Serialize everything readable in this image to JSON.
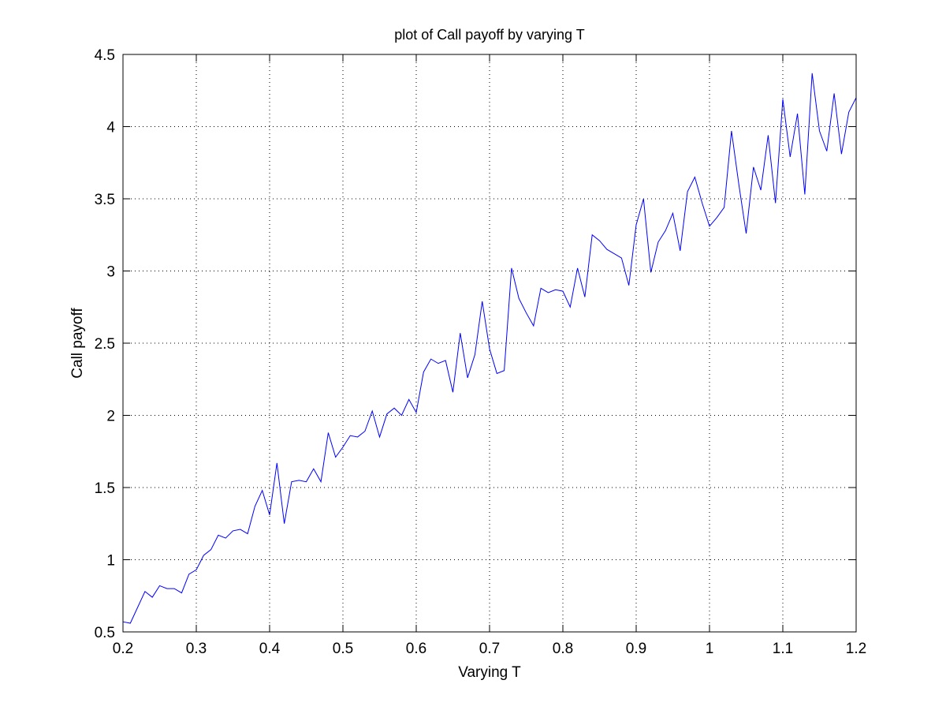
{
  "chart_data": {
    "type": "line",
    "title": "plot of Call payoff by varying T",
    "xlabel": "Varying T",
    "ylabel": "Call payoff",
    "xlim": [
      0.2,
      1.2
    ],
    "ylim": [
      0.5,
      4.5
    ],
    "grid": true,
    "x_ticks": [
      "0.2",
      "0.3",
      "0.4",
      "0.5",
      "0.6",
      "0.7",
      "0.8",
      "0.9",
      "1",
      "1.1",
      "1.2"
    ],
    "y_ticks": [
      "0.5",
      "1",
      "1.5",
      "2",
      "2.5",
      "3",
      "3.5",
      "4",
      "4.5"
    ],
    "series": [
      {
        "color": "#0000ff",
        "x": [
          0.2,
          0.21,
          0.22,
          0.23,
          0.24,
          0.25,
          0.26,
          0.27,
          0.28,
          0.29,
          0.3,
          0.31,
          0.32,
          0.33,
          0.34,
          0.35,
          0.36,
          0.37,
          0.38,
          0.39,
          0.4,
          0.41,
          0.42,
          0.43,
          0.44,
          0.45,
          0.46,
          0.47,
          0.48,
          0.49,
          0.5,
          0.51,
          0.52,
          0.53,
          0.54,
          0.55,
          0.56,
          0.57,
          0.58,
          0.59,
          0.6,
          0.61,
          0.62,
          0.63,
          0.64,
          0.65,
          0.66,
          0.67,
          0.68,
          0.69,
          0.7,
          0.71,
          0.72,
          0.73,
          0.74,
          0.75,
          0.76,
          0.77,
          0.78,
          0.79,
          0.8,
          0.81,
          0.82,
          0.83,
          0.84,
          0.85,
          0.86,
          0.87,
          0.88,
          0.89,
          0.9,
          0.91,
          0.92,
          0.93,
          0.94,
          0.95,
          0.96,
          0.97,
          0.98,
          0.99,
          1.0,
          1.01,
          1.02,
          1.03,
          1.04,
          1.05,
          1.06,
          1.07,
          1.08,
          1.09,
          1.1,
          1.11,
          1.12,
          1.13,
          1.14,
          1.15,
          1.16,
          1.17,
          1.18,
          1.19,
          1.2
        ],
        "y": [
          0.57,
          0.56,
          0.67,
          0.78,
          0.74,
          0.82,
          0.8,
          0.8,
          0.77,
          0.9,
          0.93,
          1.03,
          1.07,
          1.17,
          1.15,
          1.2,
          1.21,
          1.18,
          1.37,
          1.48,
          1.31,
          1.67,
          1.25,
          1.54,
          1.55,
          1.54,
          1.63,
          1.54,
          1.88,
          1.71,
          1.78,
          1.86,
          1.85,
          1.89,
          2.03,
          1.85,
          2.01,
          2.05,
          2.0,
          2.11,
          2.02,
          2.3,
          2.39,
          2.36,
          2.38,
          2.16,
          2.57,
          2.26,
          2.42,
          2.79,
          2.46,
          2.29,
          2.31,
          3.02,
          2.81,
          2.71,
          2.62,
          2.88,
          2.85,
          2.87,
          2.86,
          2.75,
          3.02,
          2.82,
          3.25,
          3.21,
          3.15,
          3.12,
          3.09,
          2.9,
          3.32,
          3.5,
          2.99,
          3.2,
          3.28,
          3.4,
          3.14,
          3.55,
          3.65,
          3.47,
          3.31,
          3.37,
          3.44,
          3.97,
          3.6,
          3.26,
          3.72,
          3.56,
          3.94,
          3.47,
          4.19,
          3.79,
          4.09,
          3.53,
          4.37,
          3.97,
          3.83,
          4.23,
          3.81,
          4.1,
          4.2
        ]
      }
    ]
  }
}
